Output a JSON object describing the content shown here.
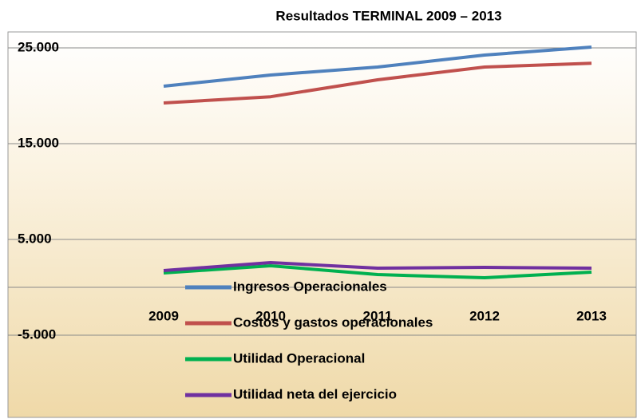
{
  "chart_data": {
    "type": "line",
    "title": "Resultados TERMINAL 2009 – 2013",
    "categories": [
      "2009",
      "2010",
      "2011",
      "2012",
      "2013"
    ],
    "series": [
      {
        "name": "Ingresos Operacionales",
        "color": "#4f81bd",
        "values": [
          21000,
          22170,
          23000,
          24250,
          25080
        ]
      },
      {
        "name": "Costos y gastos operacionales",
        "color": "#c0504d",
        "values": [
          19250,
          19900,
          21670,
          23000,
          23400
        ]
      },
      {
        "name": "Utilidad Operacional",
        "color": "#00b050",
        "values": [
          1500,
          2250,
          1330,
          1000,
          1580
        ]
      },
      {
        "name": "Utilidad neta del ejercicio",
        "color": "#7030a0",
        "values": [
          1750,
          2580,
          2000,
          2080,
          2000
        ]
      }
    ],
    "ylim": [
      -13333,
      26667
    ],
    "yticks": [
      {
        "value": 25000,
        "label": "25.000"
      },
      {
        "value": 15000,
        "label": "15.000"
      },
      {
        "value": 5000,
        "label": "5.000"
      },
      {
        "value": -5000,
        "label": "-5.000"
      }
    ],
    "grid": true
  }
}
